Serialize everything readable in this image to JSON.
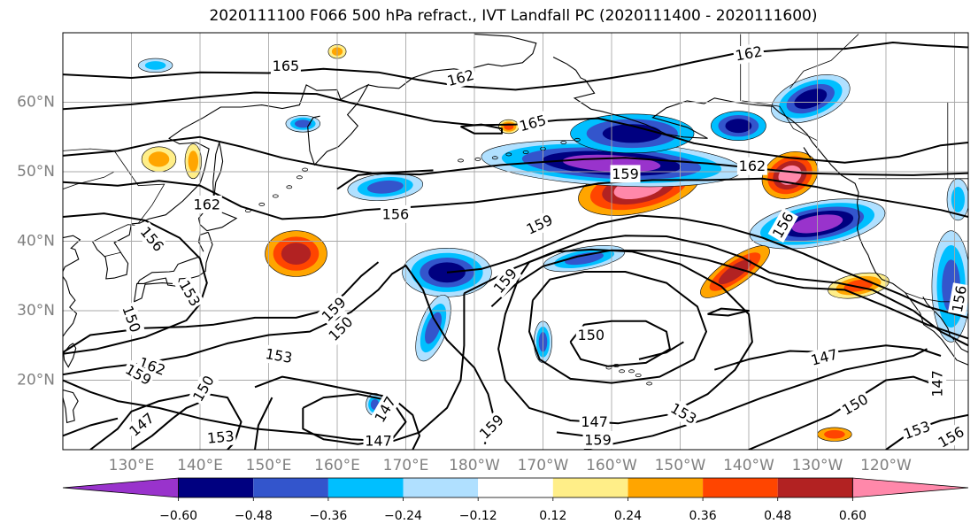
{
  "title": "2020111100 F066 500 hPa refract., IVT Landfall PC (2020111400 - 2020111600)",
  "map": {
    "lon_range": [
      120,
      252
    ],
    "lat_range": [
      10,
      70
    ],
    "grid_lon": [
      120,
      130,
      140,
      150,
      160,
      170,
      180,
      190,
      200,
      210,
      220,
      230,
      240,
      250
    ],
    "grid_lat": [
      20,
      30,
      40,
      50,
      60
    ],
    "lon_ticks": [
      "130°E",
      "140°E",
      "150°E",
      "160°E",
      "170°E",
      "180°W",
      "170°W",
      "160°W",
      "150°W",
      "140°W",
      "130°W",
      "120°W"
    ],
    "lat_ticks": [
      "20°N",
      "30°N",
      "40°N",
      "50°N",
      "60°N"
    ],
    "tick_color": "#808080"
  },
  "colorbar": {
    "colors": [
      "#9933cc",
      "#000080",
      "#3355cc",
      "#00bfff",
      "#b0e0ff",
      "#ffffff",
      "#ffee88",
      "#ffa500",
      "#ff4500",
      "#b22222",
      "#ff88aa"
    ],
    "tick_labels": [
      "−0.60",
      "−0.48",
      "−0.36",
      "−0.24",
      "−0.12",
      "0.12",
      "0.24",
      "0.36",
      "0.48",
      "0.60"
    ]
  },
  "contour_labels": [
    {
      "text": "165",
      "lon": 152.5,
      "lat": 65.2,
      "rot": 0
    },
    {
      "text": "162",
      "lon": 178,
      "lat": 63.5,
      "rot": -15
    },
    {
      "text": "162",
      "lon": 220,
      "lat": 67,
      "rot": -10
    },
    {
      "text": "165",
      "lon": 188.5,
      "lat": 57,
      "rot": -15
    },
    {
      "text": "162",
      "lon": 220.5,
      "lat": 50.8,
      "rot": 0
    },
    {
      "text": "159",
      "lon": 202,
      "lat": 49.7,
      "rot": 0
    },
    {
      "text": "156",
      "lon": 168.5,
      "lat": 43.9,
      "rot": 0
    },
    {
      "text": "162",
      "lon": 141,
      "lat": 45.3,
      "rot": 0
    },
    {
      "text": "156",
      "lon": 133,
      "lat": 40.3,
      "rot": 50
    },
    {
      "text": "153",
      "lon": 138.5,
      "lat": 32.5,
      "rot": 60
    },
    {
      "text": "150",
      "lon": 130,
      "lat": 28.8,
      "rot": 70
    },
    {
      "text": "159",
      "lon": 189.5,
      "lat": 42.4,
      "rot": -25
    },
    {
      "text": "156",
      "lon": 225,
      "lat": 42.3,
      "rot": -60
    },
    {
      "text": "159",
      "lon": 184.5,
      "lat": 34.3,
      "rot": -50
    },
    {
      "text": "159",
      "lon": 159.5,
      "lat": 30.2,
      "rot": -45
    },
    {
      "text": "150",
      "lon": 160.5,
      "lat": 27.4,
      "rot": -45
    },
    {
      "text": "153",
      "lon": 151.5,
      "lat": 23.5,
      "rot": 10
    },
    {
      "text": "150",
      "lon": 197,
      "lat": 26.5,
      "rot": 0
    },
    {
      "text": "162",
      "lon": 133,
      "lat": 22,
      "rot": 20
    },
    {
      "text": "159",
      "lon": 131,
      "lat": 20.8,
      "rot": 30
    },
    {
      "text": "150",
      "lon": 140.5,
      "lat": 18.8,
      "rot": -60
    },
    {
      "text": "147",
      "lon": 131.5,
      "lat": 13.6,
      "rot": -40
    },
    {
      "text": "153",
      "lon": 143,
      "lat": 11.8,
      "rot": -5
    },
    {
      "text": "147",
      "lon": 167,
      "lat": 15.8,
      "rot": -60
    },
    {
      "text": "147",
      "lon": 166,
      "lat": 11.3,
      "rot": 0
    },
    {
      "text": "159",
      "lon": 182.5,
      "lat": 13.3,
      "rot": -45
    },
    {
      "text": "147",
      "lon": 197.5,
      "lat": 14,
      "rot": 0
    },
    {
      "text": "159",
      "lon": 198,
      "lat": 11.4,
      "rot": 0
    },
    {
      "text": "153",
      "lon": 210.5,
      "lat": 15.2,
      "rot": 30
    },
    {
      "text": "147",
      "lon": 231,
      "lat": 23.3,
      "rot": -15
    },
    {
      "text": "150",
      "lon": 235.5,
      "lat": 16.5,
      "rot": -30
    },
    {
      "text": "147",
      "lon": 247.5,
      "lat": 19.5,
      "rot": -90
    },
    {
      "text": "153",
      "lon": 244.5,
      "lat": 12.8,
      "rot": -20
    },
    {
      "text": "156",
      "lon": 249.5,
      "lat": 11.8,
      "rot": -30
    },
    {
      "text": "156",
      "lon": 250.7,
      "lat": 31.7,
      "rot": -80
    }
  ],
  "anomaly_patches": [
    {
      "lon": 204,
      "lat": 47.7,
      "rx": 9,
      "ry": 3.6,
      "rot": -12,
      "levels": [
        2,
        3,
        4,
        5
      ]
    },
    {
      "lon": 200,
      "lat": 51.2,
      "rx": 19,
      "ry": 3.2,
      "rot": 3,
      "levels": [
        -1,
        -2,
        -3,
        -4,
        -5
      ]
    },
    {
      "lon": 203,
      "lat": 55.5,
      "rx": 9,
      "ry": 2.8,
      "rot": 0,
      "levels": [
        -2,
        -3,
        -4
      ]
    },
    {
      "lon": 218.5,
      "lat": 56.6,
      "rx": 4,
      "ry": 2.1,
      "rot": 0,
      "levels": [
        -2,
        -3,
        -4
      ]
    },
    {
      "lon": 229,
      "lat": 60.5,
      "rx": 6,
      "ry": 3,
      "rot": -20,
      "levels": [
        -1,
        -2,
        -3,
        -4
      ]
    },
    {
      "lon": 226,
      "lat": 49.5,
      "rx": 4.2,
      "ry": 3.2,
      "rot": -25,
      "levels": [
        2,
        3,
        4,
        5
      ]
    },
    {
      "lon": 230,
      "lat": 42.5,
      "rx": 10,
      "ry": 3.2,
      "rot": -10,
      "levels": [
        -1,
        -2,
        -3,
        -4,
        -5
      ]
    },
    {
      "lon": 218,
      "lat": 35.6,
      "rx": 6,
      "ry": 1.9,
      "rot": -35,
      "levels": [
        2,
        3,
        4
      ]
    },
    {
      "lon": 236,
      "lat": 33.6,
      "rx": 4.5,
      "ry": 1.7,
      "rot": -10,
      "levels": [
        1,
        2,
        3
      ]
    },
    {
      "lon": 249.5,
      "lat": 33.5,
      "rx": 2.8,
      "ry": 8,
      "rot": 0,
      "levels": [
        -1,
        -2,
        -3
      ]
    },
    {
      "lon": 250.5,
      "lat": 46,
      "rx": 1.6,
      "ry": 3,
      "rot": 0,
      "levels": [
        -1,
        -2
      ]
    },
    {
      "lon": 196,
      "lat": 37.5,
      "rx": 6,
      "ry": 1.6,
      "rot": -10,
      "levels": [
        -1,
        -2,
        -3
      ]
    },
    {
      "lon": 176,
      "lat": 35.5,
      "rx": 6.5,
      "ry": 3.5,
      "rot": 0,
      "levels": [
        -1,
        -2,
        -3,
        -4
      ]
    },
    {
      "lon": 174,
      "lat": 27.5,
      "rx": 2,
      "ry": 5,
      "rot": 20,
      "levels": [
        -1,
        -2,
        -3
      ]
    },
    {
      "lon": 190,
      "lat": 25.5,
      "rx": 1.3,
      "ry": 3,
      "rot": 0,
      "levels": [
        -1,
        -2,
        -3
      ]
    },
    {
      "lon": 167,
      "lat": 47.8,
      "rx": 5.5,
      "ry": 1.9,
      "rot": -5,
      "levels": [
        -1,
        -2,
        -3
      ]
    },
    {
      "lon": 155,
      "lat": 56.9,
      "rx": 2.5,
      "ry": 1.2,
      "rot": 0,
      "levels": [
        -1,
        -2,
        -3
      ]
    },
    {
      "lon": 133.5,
      "lat": 65.3,
      "rx": 2.5,
      "ry": 1,
      "rot": 0,
      "levels": [
        -1,
        -2
      ]
    },
    {
      "lon": 154,
      "lat": 38.2,
      "rx": 4.5,
      "ry": 3.3,
      "rot": 0,
      "levels": [
        2,
        3,
        4
      ]
    },
    {
      "lon": 134,
      "lat": 51.8,
      "rx": 2.5,
      "ry": 1.8,
      "rot": 0,
      "levels": [
        1,
        2
      ]
    },
    {
      "lon": 165.5,
      "lat": 16.5,
      "rx": 1.3,
      "ry": 1.6,
      "rot": 0,
      "levels": [
        -1,
        -2,
        -3
      ]
    },
    {
      "lon": 139,
      "lat": 51.5,
      "rx": 1.2,
      "ry": 2.5,
      "rot": 0,
      "levels": [
        1,
        2
      ]
    },
    {
      "lon": 185,
      "lat": 56.5,
      "rx": 1.5,
      "ry": 1,
      "rot": 0,
      "levels": [
        1,
        2,
        3
      ]
    },
    {
      "lon": 160,
      "lat": 67.3,
      "rx": 1.3,
      "ry": 1,
      "rot": 0,
      "levels": [
        1,
        2
      ]
    },
    {
      "lon": 232.5,
      "lat": 12.2,
      "rx": 2.5,
      "ry": 1,
      "rot": 0,
      "levels": [
        2,
        3
      ]
    }
  ]
}
